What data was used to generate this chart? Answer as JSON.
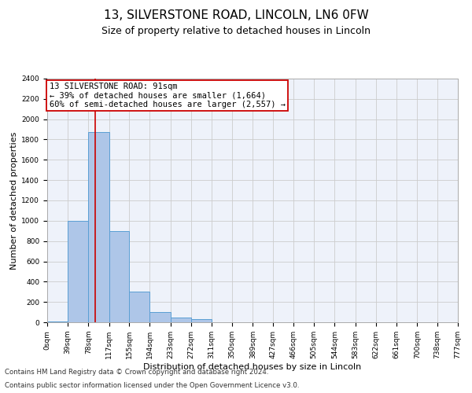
{
  "title1": "13, SILVERSTONE ROAD, LINCOLN, LN6 0FW",
  "title2": "Size of property relative to detached houses in Lincoln",
  "xlabel": "Distribution of detached houses by size in Lincoln",
  "ylabel": "Number of detached properties",
  "footer1": "Contains HM Land Registry data © Crown copyright and database right 2024.",
  "footer2": "Contains public sector information licensed under the Open Government Licence v3.0.",
  "annotation_line1": "13 SILVERSTONE ROAD: 91sqm",
  "annotation_line2": "← 39% of detached houses are smaller (1,664)",
  "annotation_line3": "60% of semi-detached houses are larger (2,557) →",
  "bar_edges": [
    0,
    39,
    78,
    117,
    155,
    194,
    233,
    272,
    311,
    350,
    389,
    427,
    466,
    505,
    544,
    583,
    622,
    661,
    700,
    738,
    777
  ],
  "bar_heights": [
    10,
    1000,
    1870,
    900,
    300,
    100,
    50,
    30,
    0,
    0,
    0,
    0,
    0,
    0,
    0,
    0,
    0,
    0,
    0,
    0
  ],
  "bar_color": "#aec6e8",
  "bar_edgecolor": "#5a9fd4",
  "vline_x": 91,
  "vline_color": "#cc0000",
  "annotation_box_color": "#cc0000",
  "ylim": [
    0,
    2400
  ],
  "xlim": [
    0,
    777
  ],
  "yticks": [
    0,
    200,
    400,
    600,
    800,
    1000,
    1200,
    1400,
    1600,
    1800,
    2000,
    2200,
    2400
  ],
  "xtick_labels": [
    "0sqm",
    "39sqm",
    "78sqm",
    "117sqm",
    "155sqm",
    "194sqm",
    "233sqm",
    "272sqm",
    "311sqm",
    "350sqm",
    "389sqm",
    "427sqm",
    "466sqm",
    "505sqm",
    "544sqm",
    "583sqm",
    "622sqm",
    "661sqm",
    "700sqm",
    "738sqm",
    "777sqm"
  ],
  "grid_color": "#cccccc",
  "bg_color": "#eef2fa",
  "title1_fontsize": 11,
  "title2_fontsize": 9,
  "annotation_fontsize": 7.5,
  "tick_fontsize": 6.5,
  "ylabel_fontsize": 8,
  "xlabel_fontsize": 8,
  "footer_fontsize": 6.2
}
